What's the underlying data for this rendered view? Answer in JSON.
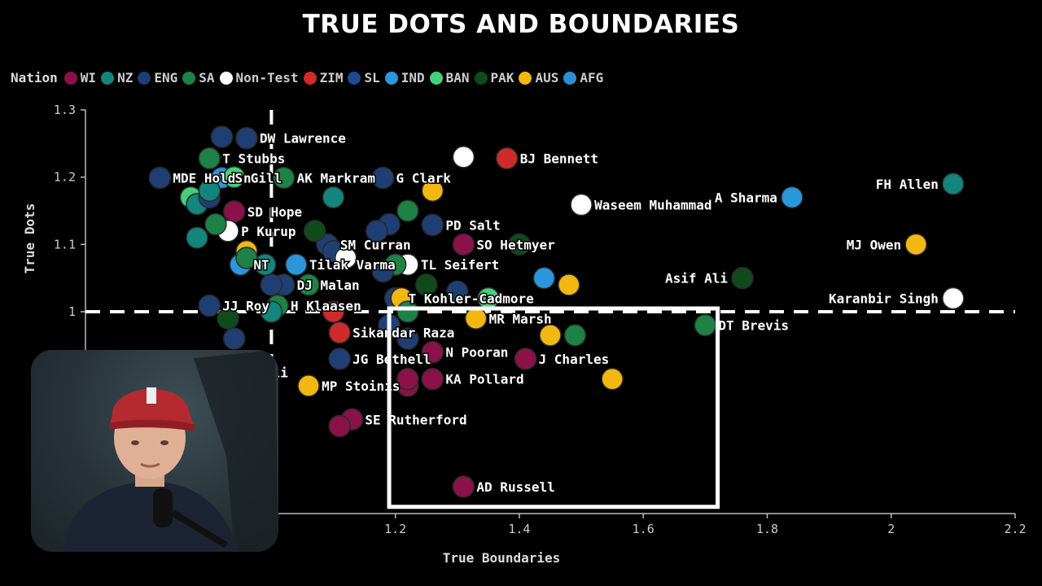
{
  "chart_data": {
    "type": "scatter",
    "title": "TRUE DOTS AND BOUNDARIES",
    "xlabel": "True Boundaries",
    "ylabel": "True Dots",
    "xlim": [
      0.7,
      2.2
    ],
    "ylim": [
      0.7,
      1.3
    ],
    "xticks": [
      "1",
      "1.2",
      "1.4",
      "1.6",
      "1.8",
      "2",
      "2.2"
    ],
    "yticks": [
      "1",
      "1.1",
      "1.2",
      "1.3"
    ],
    "reference_lines": {
      "x": 1,
      "y": 1
    },
    "legend_title": "Nation",
    "legend_position": "top-left",
    "nations": [
      {
        "name": "WI",
        "color": "#8b1148"
      },
      {
        "name": "NZ",
        "color": "#13857b"
      },
      {
        "name": "ENG",
        "color": "#1f3f74"
      },
      {
        "name": "SA",
        "color": "#1e8145"
      },
      {
        "name": "Non-Test",
        "color": "#ffffff"
      },
      {
        "name": "ZIM",
        "color": "#cf2b2b"
      },
      {
        "name": "SL",
        "color": "#1d4a91"
      },
      {
        "name": "IND",
        "color": "#2a97dc"
      },
      {
        "name": "BAN",
        "color": "#44d07a"
      },
      {
        "name": "PAK",
        "color": "#0f4a1c"
      },
      {
        "name": "AUS",
        "color": "#f3b712"
      },
      {
        "name": "AFG",
        "color": "#2f8dd2"
      }
    ],
    "points": [
      {
        "label": "DW Lawrence",
        "nation": "ENG",
        "x": 0.96,
        "y": 1.258
      },
      {
        "label": "T Stubbs",
        "nation": "SA",
        "x": 0.9,
        "y": 1.228
      },
      {
        "label": "MDE Holden",
        "nation": "ENG",
        "x": 0.82,
        "y": 1.199
      },
      {
        "label": "S Gill",
        "nation": "IND",
        "x": 0.92,
        "y": 1.199
      },
      {
        "label": "AK Markram",
        "nation": "SA",
        "x": 1.02,
        "y": 1.199
      },
      {
        "label": "G Clark",
        "nation": "ENG",
        "x": 1.18,
        "y": 1.199
      },
      {
        "label": "BJ Bennett",
        "nation": "ZIM",
        "x": 1.38,
        "y": 1.228
      },
      {
        "label": "SD Hope",
        "nation": "WI",
        "x": 0.94,
        "y": 1.149
      },
      {
        "label": "P Kurup",
        "nation": "Non-Test",
        "x": 0.93,
        "y": 1.12
      },
      {
        "label": "Waseem Muhammad",
        "nation": "Non-Test",
        "x": 1.5,
        "y": 1.159
      },
      {
        "label": "PD Salt",
        "nation": "ENG",
        "x": 1.26,
        "y": 1.129
      },
      {
        "label": "SM Curran",
        "nation": "ENG",
        "x": 1.09,
        "y": 1.1
      },
      {
        "label": "SO Hetmyer",
        "nation": "WI",
        "x": 1.31,
        "y": 1.1
      },
      {
        "label": "NT",
        "nation": "IND",
        "x": 0.95,
        "y": 1.07
      },
      {
        "label": "Tilak Varma",
        "nation": "IND",
        "x": 1.04,
        "y": 1.07
      },
      {
        "label": "TL Seifert",
        "nation": "Non-Test",
        "x": 1.22,
        "y": 1.07
      },
      {
        "label": "DJ Malan",
        "nation": "ENG",
        "x": 1.02,
        "y": 1.04
      },
      {
        "label": "T Kohler-Cadmore",
        "nation": "ENG",
        "x": 1.2,
        "y": 1.02
      },
      {
        "label": "JJ Roy",
        "nation": "ENG",
        "x": 0.9,
        "y": 1.009
      },
      {
        "label": "H Klaasen",
        "nation": "SA",
        "x": 1.01,
        "y": 1.009
      },
      {
        "label": "MR Marsh",
        "nation": "AUS",
        "x": 1.33,
        "y": 0.99
      },
      {
        "label": "Sikandar Raza",
        "nation": "ZIM",
        "x": 1.11,
        "y": 0.969
      },
      {
        "label": "DT Brevis",
        "nation": "SA",
        "x": 1.7,
        "y": 0.98
      },
      {
        "label": "N Pooran",
        "nation": "WI",
        "x": 1.26,
        "y": 0.94
      },
      {
        "label": "J Charles",
        "nation": "WI",
        "x": 1.41,
        "y": 0.93
      },
      {
        "label": "JG Bethell",
        "nation": "ENG",
        "x": 1.11,
        "y": 0.93
      },
      {
        "label": "MM Ali",
        "nation": "ENG",
        "x": 0.93,
        "y": 0.91
      },
      {
        "label": "KA Pollard",
        "nation": "WI",
        "x": 1.26,
        "y": 0.9
      },
      {
        "label": "MP Stoinis",
        "nation": "AUS",
        "x": 1.06,
        "y": 0.89
      },
      {
        "label": "SE Rutherford",
        "nation": "WI",
        "x": 1.13,
        "y": 0.84
      },
      {
        "label": "AD Russell",
        "nation": "WI",
        "x": 1.31,
        "y": 0.74
      },
      {
        "label": "FH Allen",
        "nation": "NZ",
        "x": 2.1,
        "y": 1.19
      },
      {
        "label": "A Sharma",
        "nation": "IND",
        "x": 1.84,
        "y": 1.17
      },
      {
        "label": "MJ Owen",
        "nation": "AUS",
        "x": 2.04,
        "y": 1.1
      },
      {
        "label": "Asif Ali",
        "nation": "PAK",
        "x": 1.76,
        "y": 1.05
      },
      {
        "label": "Karanbir Singh",
        "nation": "Non-Test",
        "x": 2.1,
        "y": 1.02
      },
      {
        "label": "",
        "nation": "BAN",
        "x": 0.87,
        "y": 1.17
      },
      {
        "label": "",
        "nation": "NZ",
        "x": 0.88,
        "y": 1.16
      },
      {
        "label": "",
        "nation": "ENG",
        "x": 0.9,
        "y": 1.17
      },
      {
        "label": "",
        "nation": "NZ",
        "x": 0.9,
        "y": 1.18
      },
      {
        "label": "",
        "nation": "SA",
        "x": 0.91,
        "y": 1.13
      },
      {
        "label": "",
        "nation": "NZ",
        "x": 0.88,
        "y": 1.11
      },
      {
        "label": "",
        "nation": "BAN",
        "x": 0.94,
        "y": 1.2
      },
      {
        "label": "",
        "nation": "NZ",
        "x": 1.1,
        "y": 1.17
      },
      {
        "label": "",
        "nation": "AUS",
        "x": 1.26,
        "y": 1.18
      },
      {
        "label": "",
        "nation": "SA",
        "x": 1.22,
        "y": 1.15
      },
      {
        "label": "",
        "nation": "ENG",
        "x": 1.19,
        "y": 1.13
      },
      {
        "label": "",
        "nation": "ENG",
        "x": 1.17,
        "y": 1.12
      },
      {
        "label": "",
        "nation": "Non-Test",
        "x": 1.31,
        "y": 1.23
      },
      {
        "label": "",
        "nation": "PAK",
        "x": 1.07,
        "y": 1.12
      },
      {
        "label": "",
        "nation": "AUS",
        "x": 0.96,
        "y": 1.09
      },
      {
        "label": "",
        "nation": "NZ",
        "x": 0.99,
        "y": 1.07
      },
      {
        "label": "",
        "nation": "SA",
        "x": 0.96,
        "y": 1.08
      },
      {
        "label": "",
        "nation": "ENG",
        "x": 1.0,
        "y": 1.04
      },
      {
        "label": "",
        "nation": "SA",
        "x": 1.06,
        "y": 1.04
      },
      {
        "label": "",
        "nation": "ENG",
        "x": 1.1,
        "y": 1.09
      },
      {
        "label": "",
        "nation": "Non-Test",
        "x": 1.12,
        "y": 1.08
      },
      {
        "label": "",
        "nation": "SA",
        "x": 1.2,
        "y": 1.07
      },
      {
        "label": "",
        "nation": "ENG",
        "x": 1.18,
        "y": 1.06
      },
      {
        "label": "",
        "nation": "PAK",
        "x": 1.25,
        "y": 1.04
      },
      {
        "label": "",
        "nation": "ENG",
        "x": 1.3,
        "y": 1.03
      },
      {
        "label": "",
        "nation": "BAN",
        "x": 1.35,
        "y": 1.02
      },
      {
        "label": "",
        "nation": "PAK",
        "x": 1.4,
        "y": 1.1
      },
      {
        "label": "",
        "nation": "IND",
        "x": 1.44,
        "y": 1.05
      },
      {
        "label": "",
        "nation": "AUS",
        "x": 1.48,
        "y": 1.04
      },
      {
        "label": "",
        "nation": "PAK",
        "x": 0.93,
        "y": 0.99
      },
      {
        "label": "",
        "nation": "NZ",
        "x": 1.0,
        "y": 1.0
      },
      {
        "label": "",
        "nation": "ZIM",
        "x": 1.1,
        "y": 1.0
      },
      {
        "label": "",
        "nation": "AUS",
        "x": 1.21,
        "y": 1.02
      },
      {
        "label": "",
        "nation": "SA",
        "x": 1.22,
        "y": 1.0
      },
      {
        "label": "",
        "nation": "ENG",
        "x": 1.19,
        "y": 0.98
      },
      {
        "label": "",
        "nation": "ENG",
        "x": 1.22,
        "y": 0.96
      },
      {
        "label": "",
        "nation": "AUS",
        "x": 1.45,
        "y": 0.965
      },
      {
        "label": "",
        "nation": "SA",
        "x": 1.49,
        "y": 0.965
      },
      {
        "label": "",
        "nation": "AUS",
        "x": 1.55,
        "y": 0.9
      },
      {
        "label": "",
        "nation": "WI",
        "x": 1.22,
        "y": 0.89
      },
      {
        "label": "",
        "nation": "WI",
        "x": 1.22,
        "y": 0.9
      },
      {
        "label": "",
        "nation": "WI",
        "x": 1.11,
        "y": 0.83
      },
      {
        "label": "",
        "nation": "ENG",
        "x": 0.94,
        "y": 0.96
      },
      {
        "label": "",
        "nation": "ENG",
        "x": 0.92,
        "y": 1.26
      }
    ]
  },
  "webcam": {
    "description_icon": "presenter-webcam-overlay"
  }
}
